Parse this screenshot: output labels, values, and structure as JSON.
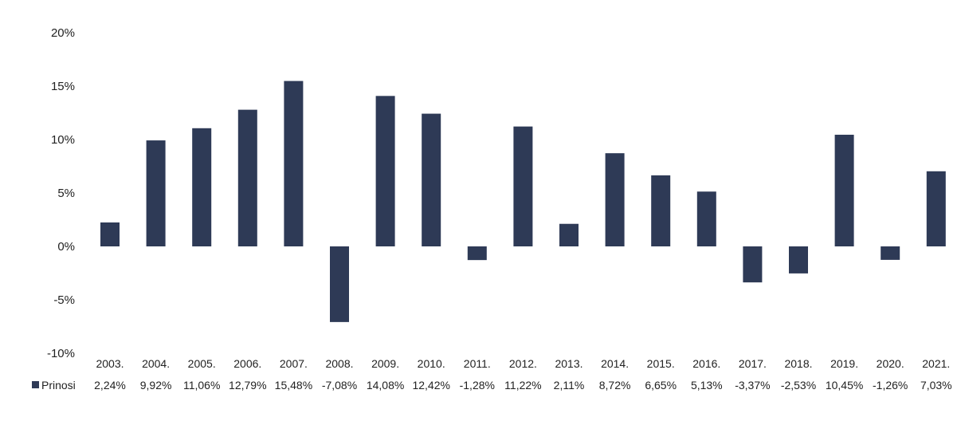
{
  "chart_data": {
    "type": "bar",
    "categories": [
      "2003.",
      "2004.",
      "2005.",
      "2006.",
      "2007.",
      "2008.",
      "2009.",
      "2010.",
      "2011.",
      "2012.",
      "2013.",
      "2014.",
      "2015.",
      "2016.",
      "2017.",
      "2018.",
      "2019.",
      "2020.",
      "2021."
    ],
    "series": [
      {
        "name": "Prinosi",
        "values": [
          2.24,
          9.92,
          11.06,
          12.79,
          15.48,
          -7.08,
          14.08,
          12.42,
          -1.28,
          11.22,
          2.11,
          8.72,
          6.65,
          5.13,
          -3.37,
          -2.53,
          10.45,
          -1.26,
          7.03
        ],
        "value_labels": [
          "2,24%",
          "9,92%",
          "11,06%",
          "12,79%",
          "15,48%",
          "-7,08%",
          "14,08%",
          "12,42%",
          "-1,28%",
          "11,22%",
          "2,11%",
          "8,72%",
          "6,65%",
          "5,13%",
          "-3,37%",
          "-2,53%",
          "10,45%",
          "-1,26%",
          "7,03%"
        ],
        "color": "#2e3a56"
      }
    ],
    "y_ticks": [
      "20%",
      "15%",
      "10%",
      "5%",
      "0%",
      "-5%",
      "-10%"
    ],
    "ylim": [
      -10,
      20
    ],
    "grid": false,
    "legend": "data table below chart",
    "title": "",
    "xlabel": "",
    "ylabel": ""
  }
}
